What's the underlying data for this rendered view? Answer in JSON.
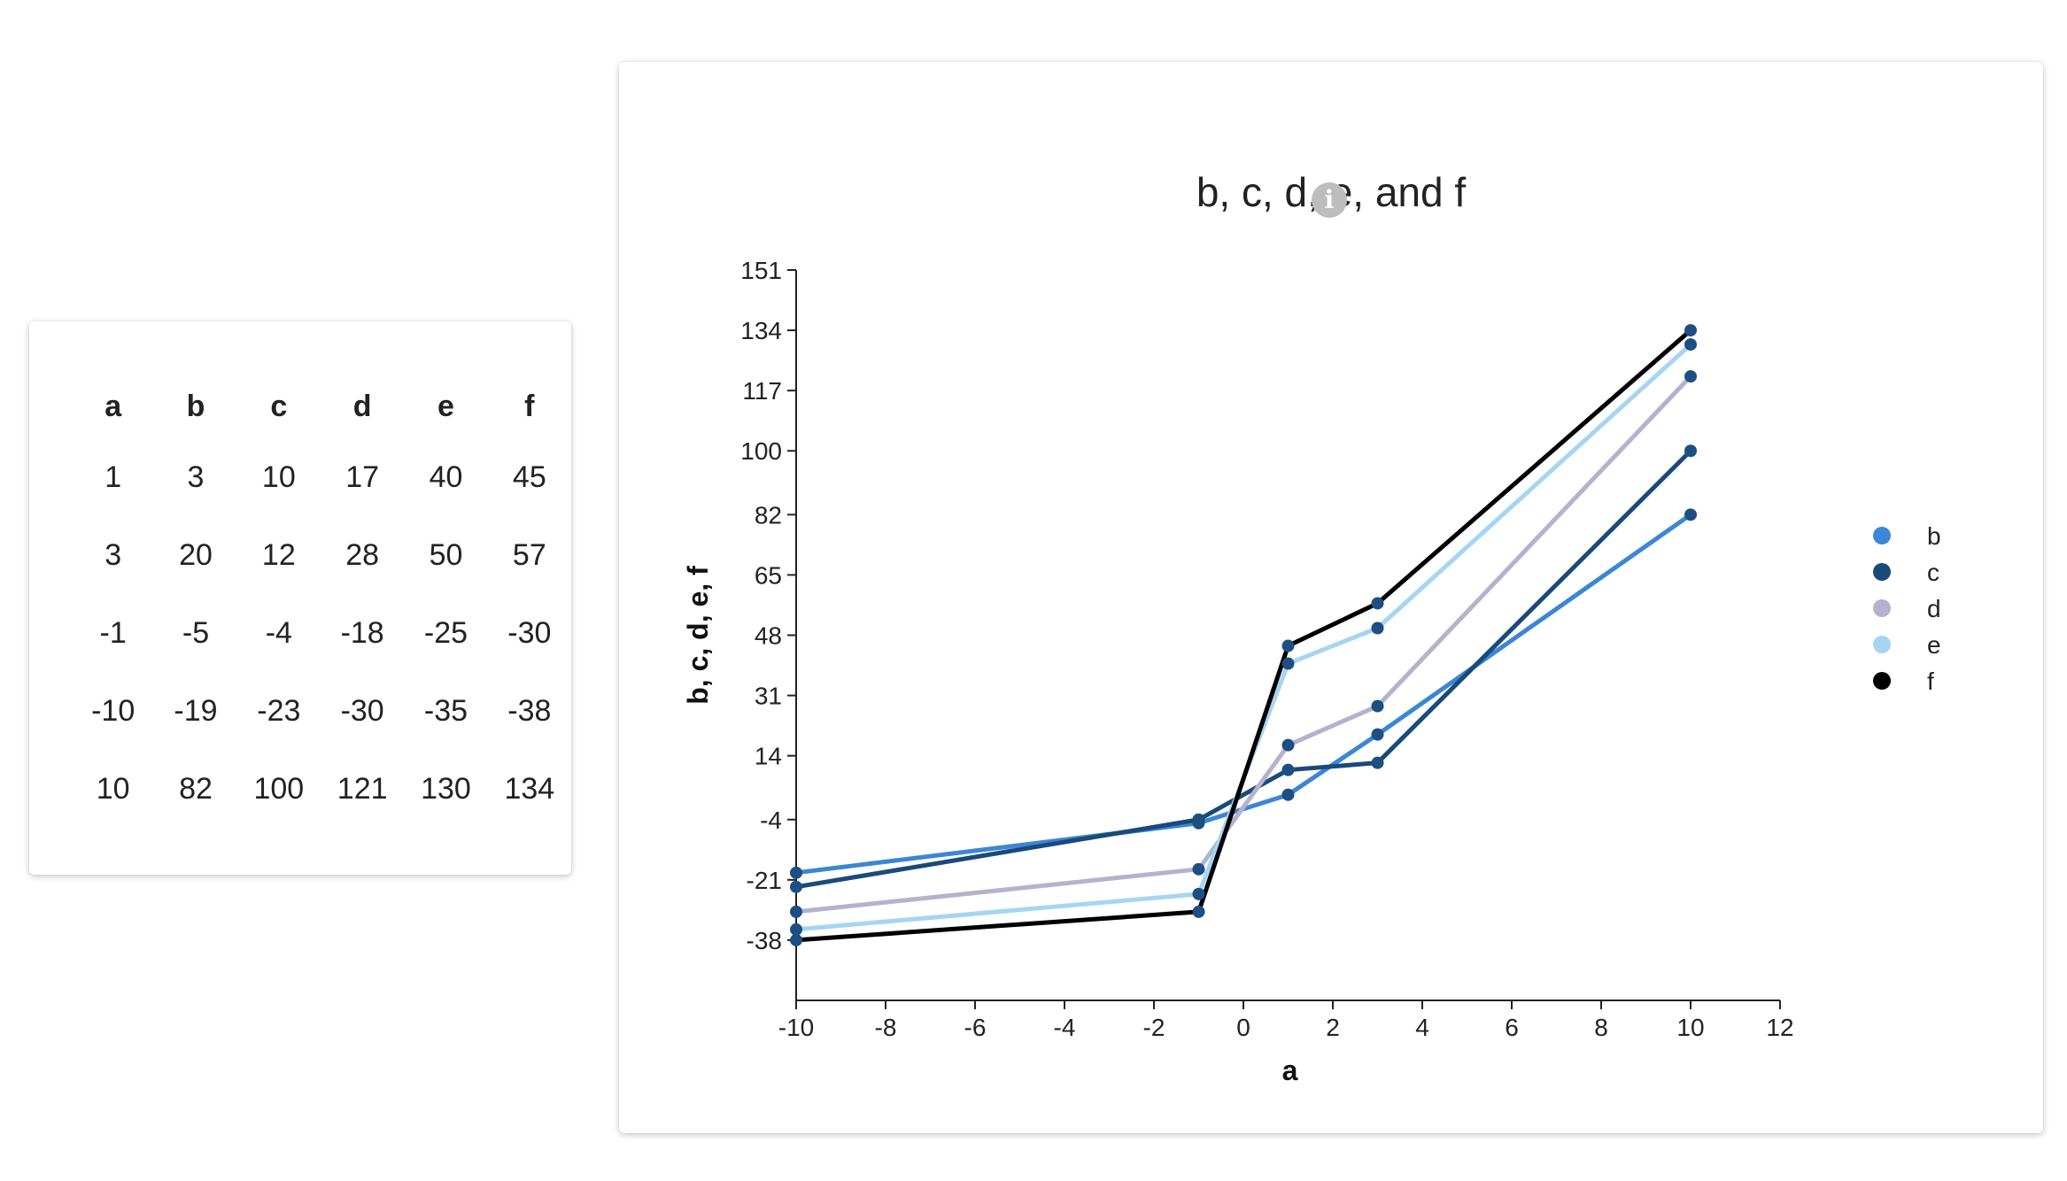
{
  "table": {
    "headers": [
      "a",
      "b",
      "c",
      "d",
      "e",
      "f"
    ],
    "rows": [
      [
        "1",
        "3",
        "10",
        "17",
        "40",
        "45"
      ],
      [
        "3",
        "20",
        "12",
        "28",
        "50",
        "57"
      ],
      [
        "-1",
        "-5",
        "-4",
        "-18",
        "-25",
        "-30"
      ],
      [
        "-10",
        "-19",
        "-23",
        "-30",
        "-35",
        "-38"
      ],
      [
        "10",
        "82",
        "100",
        "121",
        "130",
        "134"
      ]
    ]
  },
  "chart_data": {
    "type": "line",
    "title": "b, c, d, e, and f",
    "xlabel": "a",
    "ylabel": "b, c, d, e, f",
    "x": [
      -10,
      -1,
      1,
      3,
      10
    ],
    "xlim": [
      -10,
      12
    ],
    "ylim": [
      -55,
      151
    ],
    "x_ticks": [
      "-10",
      "-8",
      "-6",
      "-4",
      "-2",
      "0",
      "2",
      "4",
      "6",
      "8",
      "10",
      "12"
    ],
    "y_ticks": [
      "-38",
      "-21",
      "-4",
      "14",
      "31",
      "48",
      "65",
      "82",
      "100",
      "117",
      "134",
      "151"
    ],
    "grid": false,
    "legend_position": "right",
    "series": [
      {
        "name": "b",
        "color": "#3b86d6",
        "values": [
          -19,
          -5,
          3,
          20,
          82
        ]
      },
      {
        "name": "c",
        "color": "#1a4a7a",
        "values": [
          -23,
          -4,
          10,
          12,
          100
        ]
      },
      {
        "name": "d",
        "color": "#b4b2cc",
        "values": [
          -30,
          -18,
          17,
          28,
          121
        ]
      },
      {
        "name": "e",
        "color": "#a6d5f4",
        "values": [
          -35,
          -25,
          40,
          50,
          130
        ]
      },
      {
        "name": "f",
        "color": "#000000",
        "values": [
          -38,
          -30,
          45,
          57,
          134
        ]
      }
    ],
    "marker_color": "#1e4f82"
  }
}
